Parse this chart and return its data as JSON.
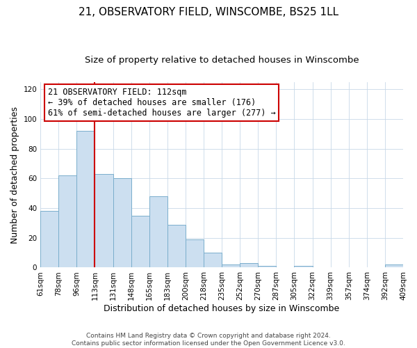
{
  "title": "21, OBSERVATORY FIELD, WINSCOMBE, BS25 1LL",
  "subtitle": "Size of property relative to detached houses in Winscombe",
  "xlabel": "Distribution of detached houses by size in Winscombe",
  "ylabel": "Number of detached properties",
  "bin_labels": [
    "61sqm",
    "78sqm",
    "96sqm",
    "113sqm",
    "131sqm",
    "148sqm",
    "165sqm",
    "183sqm",
    "200sqm",
    "218sqm",
    "235sqm",
    "252sqm",
    "270sqm",
    "287sqm",
    "305sqm",
    "322sqm",
    "339sqm",
    "357sqm",
    "374sqm",
    "392sqm",
    "409sqm"
  ],
  "bar_heights": [
    38,
    62,
    92,
    63,
    60,
    35,
    48,
    29,
    19,
    10,
    2,
    3,
    1,
    0,
    1,
    0,
    0,
    0,
    0,
    2
  ],
  "bar_color": "#ccdff0",
  "bar_edge_color": "#7aaecc",
  "vline_x_idx": 3,
  "vline_color": "#cc0000",
  "ylim": [
    0,
    125
  ],
  "yticks": [
    0,
    20,
    40,
    60,
    80,
    100,
    120
  ],
  "annotation_line1": "21 OBSERVATORY FIELD: 112sqm",
  "annotation_line2": "← 39% of detached houses are smaller (176)",
  "annotation_line3": "61% of semi-detached houses are larger (277) →",
  "annotation_box_edge": "#cc0000",
  "footer_text": "Contains HM Land Registry data © Crown copyright and database right 2024.\nContains public sector information licensed under the Open Government Licence v3.0.",
  "title_fontsize": 11,
  "subtitle_fontsize": 9.5,
  "axis_label_fontsize": 9,
  "tick_fontsize": 7.5,
  "annotation_fontsize": 8.5,
  "footer_fontsize": 6.5
}
